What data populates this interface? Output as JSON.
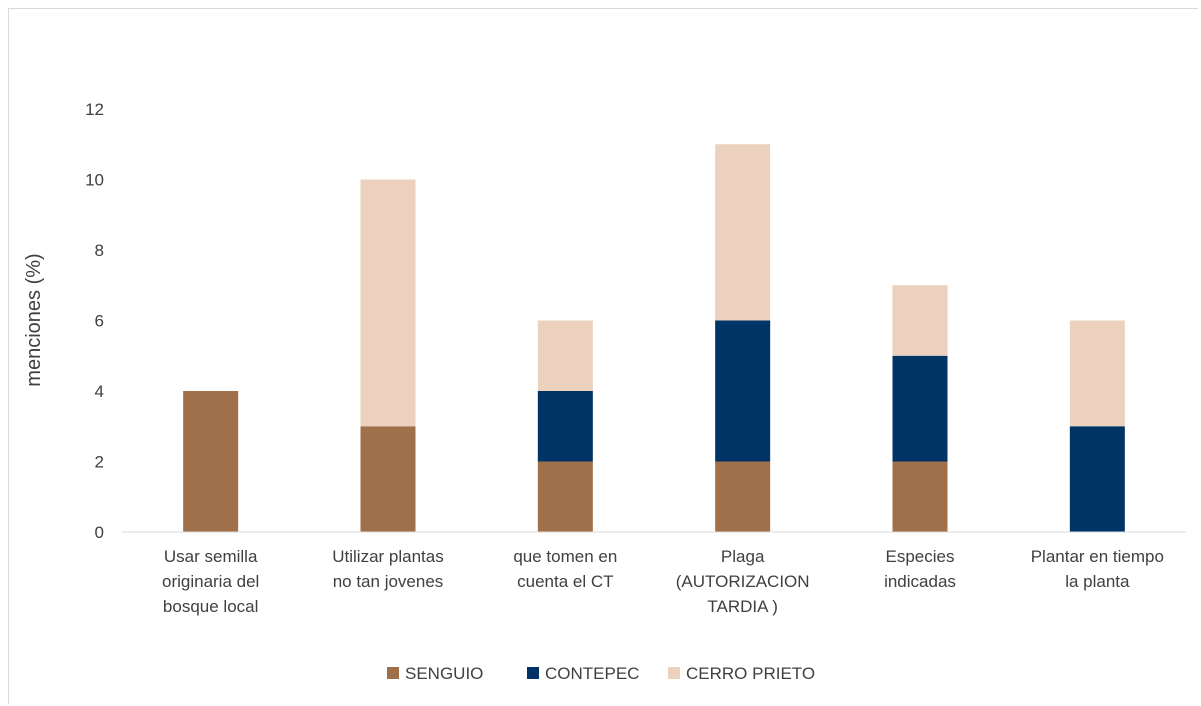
{
  "chart_data": {
    "type": "bar",
    "stacked": true,
    "title": "",
    "xlabel": "",
    "ylabel": "menciones (%)",
    "ylim": [
      0,
      12
    ],
    "yticks": [
      0,
      2,
      4,
      6,
      8,
      10,
      12
    ],
    "grid": false,
    "legend_position": "bottom",
    "categories": [
      [
        "Usar semilla",
        "originaria del",
        "bosque local"
      ],
      [
        "Utilizar plantas",
        "no tan jovenes"
      ],
      [
        "que tomen en",
        "cuenta el CT"
      ],
      [
        "Plaga",
        "(AUTORIZACION",
        "TARDIA )"
      ],
      [
        "Especies",
        "indicadas"
      ],
      [
        "Plantar en tiempo",
        "la planta"
      ]
    ],
    "series": [
      {
        "name": "SENGUIO",
        "color": "#a0704a",
        "values": [
          4,
          3,
          2,
          2,
          2,
          0
        ]
      },
      {
        "name": "CONTEPEC",
        "color": "#003366",
        "values": [
          0,
          0,
          2,
          4,
          3,
          3
        ]
      },
      {
        "name": "CERRO PRIETO",
        "color": "#ebd1be",
        "values": [
          0,
          7,
          2,
          5,
          2,
          3
        ]
      }
    ]
  }
}
